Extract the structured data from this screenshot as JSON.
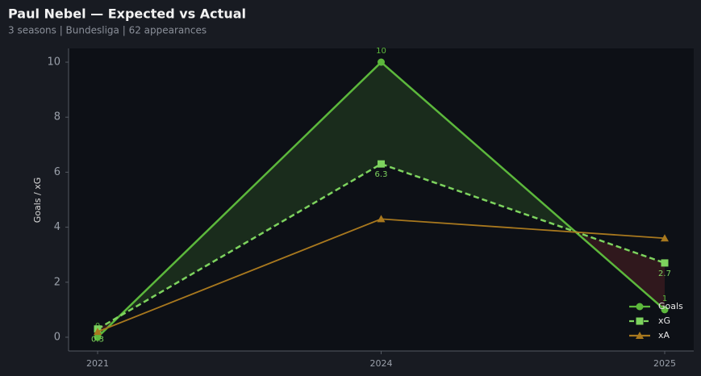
{
  "chart_data": {
    "type": "line",
    "title": "Paul Nebel — Expected vs Actual",
    "subtitle": "3 seasons | Bundesliga | 62 appearances",
    "ylabel": "Goals / xG",
    "categories": [
      "2021",
      "2024",
      "2025"
    ],
    "series": [
      {
        "name": "Goals",
        "color": "#5cb83c",
        "marker": "circle",
        "dashed": false,
        "values": [
          0,
          10,
          1
        ],
        "value_labels": [
          "0",
          "10",
          "1"
        ]
      },
      {
        "name": "xG",
        "color": "#7dd35e",
        "marker": "square",
        "dashed": true,
        "values": [
          0.3,
          6.3,
          2.7
        ],
        "value_labels": [
          "0.3",
          "6.3",
          "2.7"
        ]
      },
      {
        "name": "xA",
        "color": "#a8781e",
        "marker": "triangle",
        "dashed": false,
        "values": [
          0.2,
          4.3,
          3.6
        ]
      }
    ],
    "ylim": [
      -0.5,
      10.5
    ],
    "yticks": [
      0,
      2,
      4,
      6,
      8,
      10
    ],
    "legend": "lower right"
  }
}
